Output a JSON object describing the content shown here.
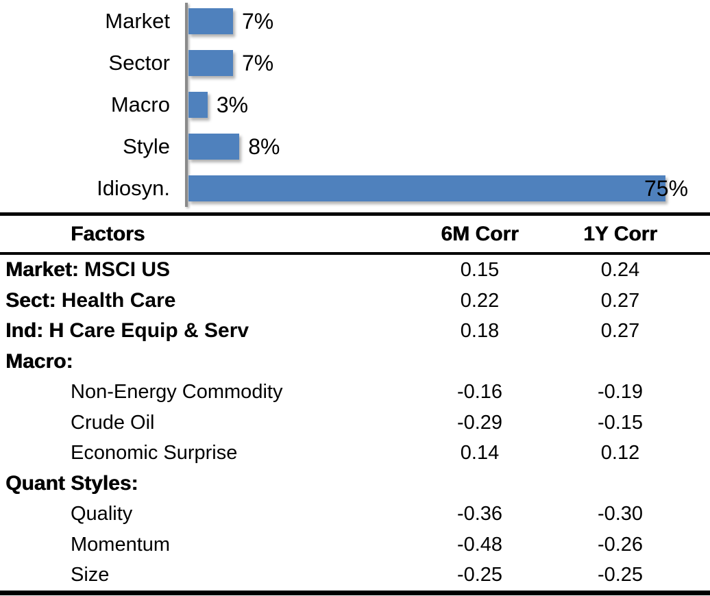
{
  "chart_data": {
    "type": "bar",
    "orientation": "horizontal",
    "title": "",
    "xlabel": "",
    "ylabel": "",
    "xlim": [
      0,
      75
    ],
    "grid": false,
    "legend": false,
    "categories": [
      "Market",
      "Sector",
      "Macro",
      "Style",
      "Idiosyn."
    ],
    "values": [
      7,
      7,
      3,
      8,
      75
    ],
    "value_labels": [
      "7%",
      "7%",
      "3%",
      "8%",
      "75%"
    ],
    "bar_color": "#4F81BD",
    "axis_color": "#8A8A8A",
    "label_color": "#000000"
  },
  "table": {
    "headers": [
      "Factors",
      "6M Corr",
      "1Y Corr"
    ],
    "rows": [
      {
        "bold": "Market:",
        "rest": " MSCI US",
        "indent": false,
        "corr6m": "0.15",
        "corr1y": "0.24"
      },
      {
        "bold": "Sect:",
        "rest": " Health Care",
        "indent": false,
        "corr6m": "0.22",
        "corr1y": "0.27"
      },
      {
        "bold": "Ind: H",
        "rest": " Care Equip & Serv",
        "indent": false,
        "corr6m": "0.18",
        "corr1y": "0.27"
      },
      {
        "bold": "Macro:",
        "rest": "",
        "indent": false,
        "corr6m": "",
        "corr1y": ""
      },
      {
        "bold": "",
        "rest": "Non-Energy Commodity",
        "indent": true,
        "corr6m": "-0.16",
        "corr1y": "-0.19"
      },
      {
        "bold": "",
        "rest": "Crude Oil",
        "indent": true,
        "corr6m": "-0.29",
        "corr1y": "-0.15"
      },
      {
        "bold": "",
        "rest": "Economic Surprise",
        "indent": true,
        "corr6m": "0.14",
        "corr1y": "0.12"
      },
      {
        "bold": "Quant Styles:",
        "rest": "",
        "indent": false,
        "corr6m": "",
        "corr1y": ""
      },
      {
        "bold": "",
        "rest": "Quality",
        "indent": true,
        "corr6m": "-0.36",
        "corr1y": "-0.30"
      },
      {
        "bold": "",
        "rest": "Momentum",
        "indent": true,
        "corr6m": "-0.48",
        "corr1y": "-0.26"
      },
      {
        "bold": "",
        "rest": "Size",
        "indent": true,
        "corr6m": "-0.25",
        "corr1y": "-0.25"
      }
    ]
  }
}
